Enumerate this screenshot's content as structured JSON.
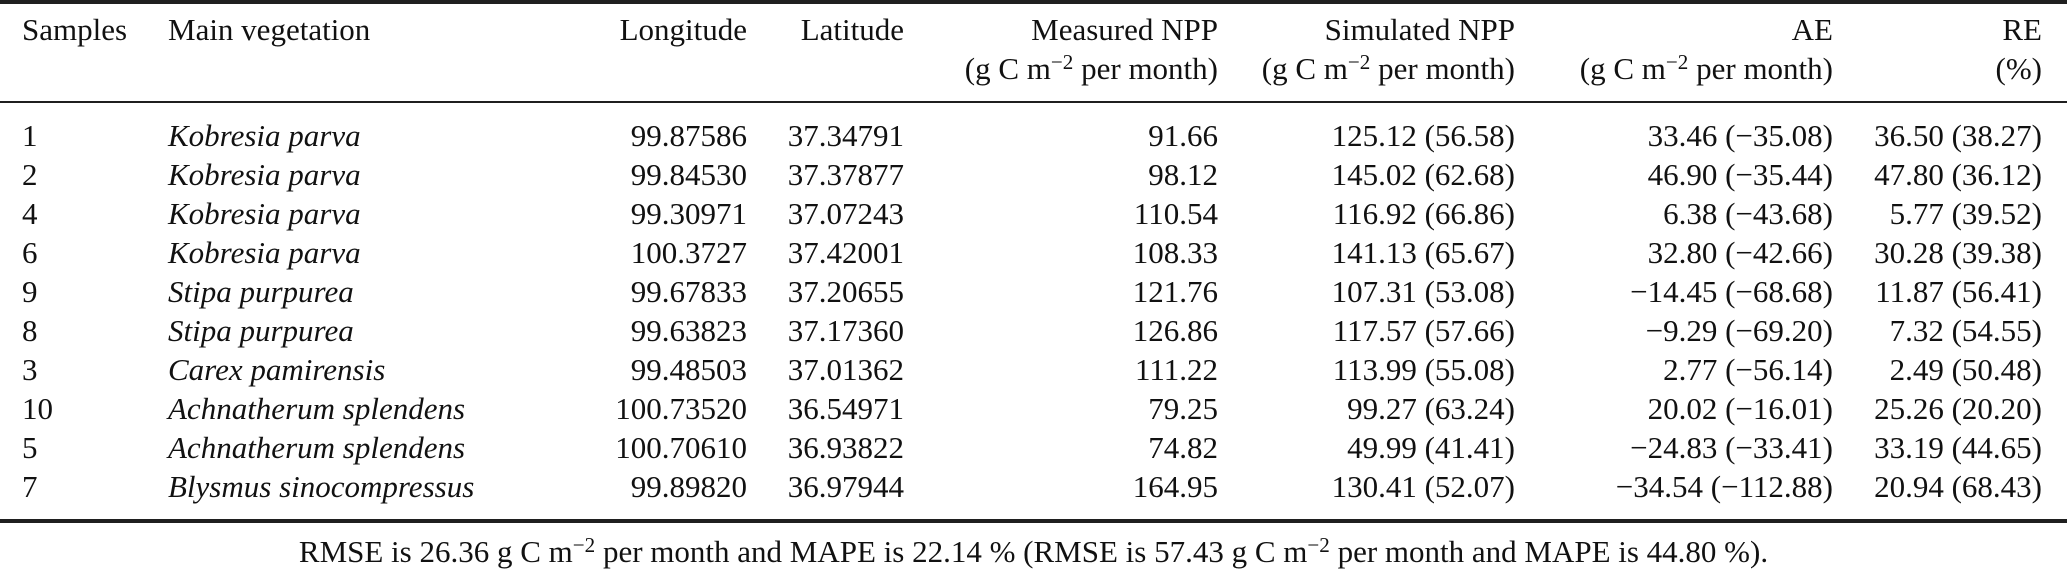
{
  "header": {
    "samples": "Samples",
    "vegetation": "Main vegetation",
    "longitude": "Longitude",
    "latitude": "Latitude",
    "measured_npp": "Measured NPP",
    "simulated_npp": "Simulated NPP",
    "ae": "AE",
    "re": "RE",
    "npp_units": {
      "prefix": "(g C m",
      "sup": "−2",
      "suffix": " per month)"
    },
    "re_units": "(%)"
  },
  "rows": [
    {
      "sample": "1",
      "vegetation": "Kobresia parva",
      "longitude": "99.87586",
      "latitude": "37.34791",
      "measured": "91.66",
      "simulated": "125.12 (56.58)",
      "ae": "33.46 (−35.08)",
      "re": "36.50 (38.27)"
    },
    {
      "sample": "2",
      "vegetation": "Kobresia parva",
      "longitude": "99.84530",
      "latitude": "37.37877",
      "measured": "98.12",
      "simulated": "145.02 (62.68)",
      "ae": "46.90 (−35.44)",
      "re": "47.80 (36.12)"
    },
    {
      "sample": "4",
      "vegetation": "Kobresia parva",
      "longitude": "99.30971",
      "latitude": "37.07243",
      "measured": "110.54",
      "simulated": "116.92 (66.86)",
      "ae": "6.38 (−43.68)",
      "re": "5.77 (39.52)"
    },
    {
      "sample": "6",
      "vegetation": "Kobresia parva",
      "longitude": "100.3727",
      "latitude": "37.42001",
      "measured": "108.33",
      "simulated": "141.13 (65.67)",
      "ae": "32.80 (−42.66)",
      "re": "30.28 (39.38)"
    },
    {
      "sample": "9",
      "vegetation": "Stipa purpurea",
      "longitude": "99.67833",
      "latitude": "37.20655",
      "measured": "121.76",
      "simulated": "107.31 (53.08)",
      "ae": "−14.45 (−68.68)",
      "re": "11.87 (56.41)"
    },
    {
      "sample": "8",
      "vegetation": "Stipa purpurea",
      "longitude": "99.63823",
      "latitude": "37.17360",
      "measured": "126.86",
      "simulated": "117.57 (57.66)",
      "ae": "−9.29 (−69.20)",
      "re": "7.32 (54.55)"
    },
    {
      "sample": "3",
      "vegetation": "Carex pamirensis",
      "longitude": "99.48503",
      "latitude": "37.01362",
      "measured": "111.22",
      "simulated": "113.99 (55.08)",
      "ae": "2.77 (−56.14)",
      "re": "2.49 (50.48)"
    },
    {
      "sample": "10",
      "vegetation": "Achnatherum splendens",
      "longitude": "100.73520",
      "latitude": "36.54971",
      "measured": "79.25",
      "simulated": "99.27 (63.24)",
      "ae": "20.02 (−16.01)",
      "re": "25.26 (20.20)"
    },
    {
      "sample": "5",
      "vegetation": "Achnatherum splendens",
      "longitude": "100.70610",
      "latitude": "36.93822",
      "measured": "74.82",
      "simulated": "49.99 (41.41)",
      "ae": "−24.83 (−33.41)",
      "re": "33.19 (44.65)"
    },
    {
      "sample": "7",
      "vegetation": "Blysmus sinocompressus",
      "longitude": "99.89820",
      "latitude": "36.97944",
      "measured": "164.95",
      "simulated": "130.41 (52.07)",
      "ae": "−34.54 (−112.88)",
      "re": "20.94 (68.43)"
    }
  ],
  "footer": {
    "part1": "RMSE is 26.36 g C m",
    "sup1": "−2",
    "part2": " per month and MAPE is 22.14 % (RMSE is 57.43 g C m",
    "sup2": "−2",
    "part3": " per month and MAPE is 44.80 %)."
  }
}
